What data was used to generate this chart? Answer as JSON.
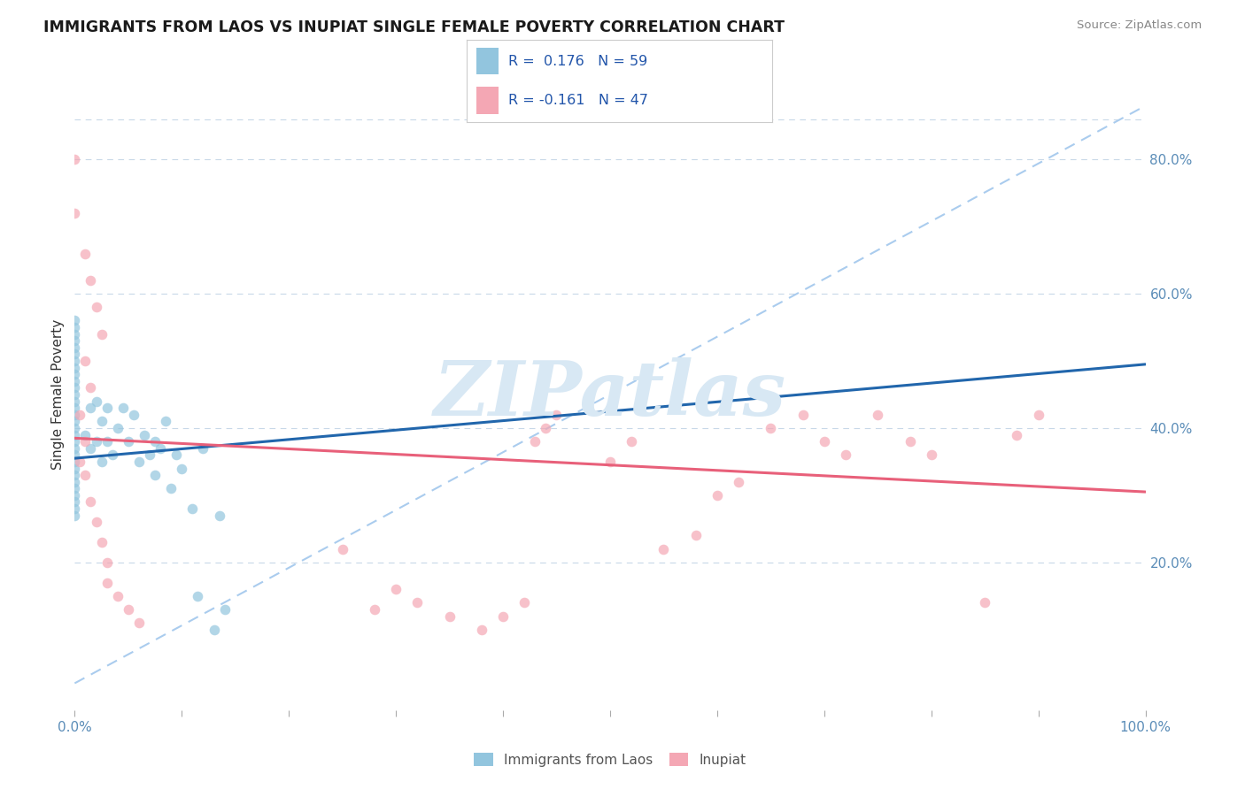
{
  "title": "IMMIGRANTS FROM LAOS VS INUPIAT SINGLE FEMALE POVERTY CORRELATION CHART",
  "source": "Source: ZipAtlas.com",
  "ylabel": "Single Female Poverty",
  "blue_color": "#92C5DE",
  "pink_color": "#F4A7B4",
  "blue_line_color": "#2166AC",
  "pink_line_color": "#E8607A",
  "dash_color": "#AACCEE",
  "watermark_color": "#D8E8F4",
  "laos_points": [
    [
      0.0,
      0.56
    ],
    [
      0.0,
      0.55
    ],
    [
      0.0,
      0.54
    ],
    [
      0.0,
      0.53
    ],
    [
      0.0,
      0.52
    ],
    [
      0.0,
      0.51
    ],
    [
      0.0,
      0.5
    ],
    [
      0.0,
      0.49
    ],
    [
      0.0,
      0.48
    ],
    [
      0.0,
      0.47
    ],
    [
      0.0,
      0.46
    ],
    [
      0.0,
      0.45
    ],
    [
      0.0,
      0.44
    ],
    [
      0.0,
      0.43
    ],
    [
      0.0,
      0.42
    ],
    [
      0.0,
      0.41
    ],
    [
      0.0,
      0.4
    ],
    [
      0.0,
      0.39
    ],
    [
      0.0,
      0.38
    ],
    [
      0.0,
      0.37
    ],
    [
      0.0,
      0.36
    ],
    [
      0.0,
      0.35
    ],
    [
      0.0,
      0.34
    ],
    [
      0.0,
      0.33
    ],
    [
      0.0,
      0.32
    ],
    [
      0.0,
      0.31
    ],
    [
      0.0,
      0.3
    ],
    [
      0.0,
      0.29
    ],
    [
      0.0,
      0.28
    ],
    [
      0.0,
      0.27
    ],
    [
      1.0,
      0.39
    ],
    [
      1.5,
      0.43
    ],
    [
      1.5,
      0.37
    ],
    [
      2.0,
      0.38
    ],
    [
      2.0,
      0.44
    ],
    [
      2.5,
      0.41
    ],
    [
      2.5,
      0.35
    ],
    [
      3.0,
      0.43
    ],
    [
      3.0,
      0.38
    ],
    [
      3.5,
      0.36
    ],
    [
      4.0,
      0.4
    ],
    [
      4.5,
      0.43
    ],
    [
      5.0,
      0.38
    ],
    [
      5.5,
      0.42
    ],
    [
      6.0,
      0.35
    ],
    [
      6.5,
      0.39
    ],
    [
      7.0,
      0.36
    ],
    [
      7.5,
      0.33
    ],
    [
      7.5,
      0.38
    ],
    [
      8.0,
      0.37
    ],
    [
      8.5,
      0.41
    ],
    [
      9.0,
      0.31
    ],
    [
      9.5,
      0.36
    ],
    [
      10.0,
      0.34
    ],
    [
      11.0,
      0.28
    ],
    [
      11.5,
      0.15
    ],
    [
      12.0,
      0.37
    ],
    [
      13.0,
      0.1
    ],
    [
      13.5,
      0.27
    ],
    [
      14.0,
      0.13
    ]
  ],
  "inupiat_points": [
    [
      0.0,
      0.8
    ],
    [
      0.0,
      0.72
    ],
    [
      1.0,
      0.66
    ],
    [
      1.5,
      0.62
    ],
    [
      2.0,
      0.58
    ],
    [
      2.5,
      0.54
    ],
    [
      1.0,
      0.5
    ],
    [
      1.5,
      0.46
    ],
    [
      0.5,
      0.42
    ],
    [
      1.0,
      0.38
    ],
    [
      0.5,
      0.35
    ],
    [
      1.0,
      0.33
    ],
    [
      1.5,
      0.29
    ],
    [
      2.0,
      0.26
    ],
    [
      2.5,
      0.23
    ],
    [
      3.0,
      0.2
    ],
    [
      3.0,
      0.17
    ],
    [
      4.0,
      0.15
    ],
    [
      5.0,
      0.13
    ],
    [
      6.0,
      0.11
    ],
    [
      25.0,
      0.22
    ],
    [
      28.0,
      0.13
    ],
    [
      30.0,
      0.16
    ],
    [
      32.0,
      0.14
    ],
    [
      35.0,
      0.12
    ],
    [
      38.0,
      0.1
    ],
    [
      40.0,
      0.12
    ],
    [
      42.0,
      0.14
    ],
    [
      43.0,
      0.38
    ],
    [
      44.0,
      0.4
    ],
    [
      45.0,
      0.42
    ],
    [
      50.0,
      0.35
    ],
    [
      52.0,
      0.38
    ],
    [
      55.0,
      0.22
    ],
    [
      58.0,
      0.24
    ],
    [
      60.0,
      0.3
    ],
    [
      62.0,
      0.32
    ],
    [
      65.0,
      0.4
    ],
    [
      68.0,
      0.42
    ],
    [
      70.0,
      0.38
    ],
    [
      72.0,
      0.36
    ],
    [
      75.0,
      0.42
    ],
    [
      78.0,
      0.38
    ],
    [
      80.0,
      0.36
    ],
    [
      85.0,
      0.14
    ],
    [
      88.0,
      0.39
    ],
    [
      90.0,
      0.42
    ]
  ],
  "blue_trend": [
    0.0,
    100.0,
    0.355,
    0.495
  ],
  "pink_trend": [
    0.0,
    100.0,
    0.385,
    0.305
  ],
  "dash_trend": [
    0.0,
    100.0,
    0.02,
    0.88
  ],
  "xlim": [
    0.0,
    100.0
  ],
  "ylim": [
    -0.02,
    0.92
  ]
}
